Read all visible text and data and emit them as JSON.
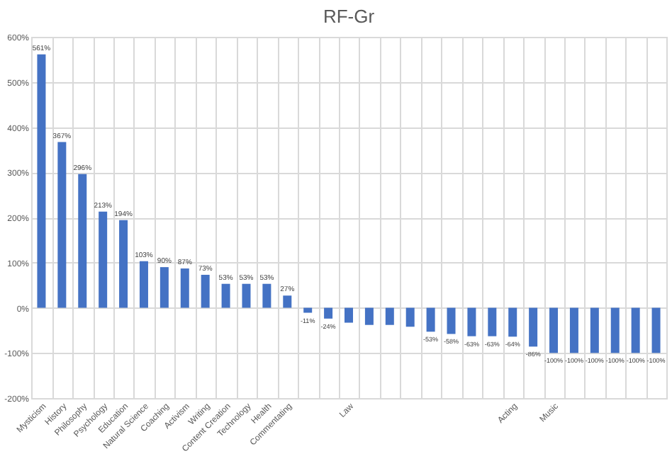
{
  "chart_data": {
    "type": "bar",
    "title": "RF-Gr",
    "categories": [
      "Mysticism",
      "History",
      "Philosophy",
      "Psychology",
      "Education",
      "Natural Science",
      "Coaching",
      "Activism",
      "Writing",
      "Content Creation",
      "Technology",
      "Health",
      "Commentating",
      null,
      null,
      "Law",
      null,
      null,
      null,
      null,
      null,
      null,
      null,
      "Acting",
      null,
      "Music",
      null,
      null,
      null,
      null,
      null
    ],
    "values": [
      561,
      367,
      296,
      213,
      194,
      103,
      90,
      87,
      73,
      53,
      53,
      53,
      27,
      -11,
      -24,
      -33,
      -38,
      -38,
      -42,
      -53,
      -58,
      -63,
      -63,
      -64,
      -86,
      -100,
      -100,
      -100,
      -100,
      -100,
      -100
    ],
    "value_labels": [
      "561%",
      "367%",
      "296%",
      "213%",
      "194%",
      "103%",
      "90%",
      "87%",
      "73%",
      "53%",
      "53%",
      "53%",
      "27%",
      "-11%",
      "-24%",
      null,
      null,
      null,
      null,
      "-53%",
      "-58%",
      "-63%",
      "-63%",
      "-64%",
      "-86%",
      "-100%",
      "-100%",
      "-100%",
      "-100%",
      "-100%",
      "-100%"
    ],
    "color": "#4472c4",
    "ylim": [
      -200,
      600
    ],
    "yticks": [
      {
        "value": -200,
        "label": "-200%"
      },
      {
        "value": -100,
        "label": "-100%"
      },
      {
        "value": 0,
        "label": "0%"
      },
      {
        "value": 100,
        "label": "100%"
      },
      {
        "value": 200,
        "label": "200%"
      },
      {
        "value": 300,
        "label": "300%"
      },
      {
        "value": 400,
        "label": "400%"
      },
      {
        "value": 500,
        "label": "500%"
      },
      {
        "value": 600,
        "label": "600%"
      }
    ],
    "grid": true
  }
}
